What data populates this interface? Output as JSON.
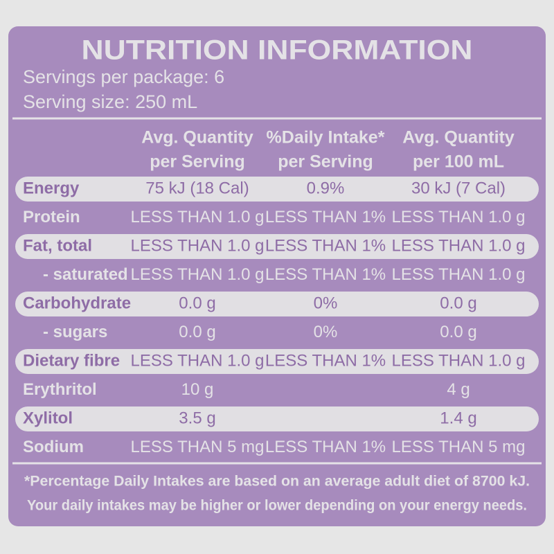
{
  "title": "NUTRITION INFORMATION",
  "servings": "Servings per package: 6",
  "serving_size": "Serving size: 250 mL",
  "table": {
    "headers": [
      [
        "Avg. Quantity",
        "per Serving"
      ],
      [
        "%Daily Intake*",
        "per Serving"
      ],
      [
        "Avg. Quantity",
        "per 100 mL"
      ]
    ],
    "rows": [
      {
        "label": "Energy",
        "cells": [
          "75 kJ (18 Cal)",
          "0.9%",
          "30 kJ (7 Cal)"
        ]
      },
      {
        "label": "Protein",
        "cells": [
          "LESS THAN 1.0 g",
          "LESS THAN 1%",
          "LESS THAN 1.0 g"
        ]
      },
      {
        "label": "Fat, total",
        "cells": [
          "LESS THAN 1.0 g",
          "LESS THAN 1%",
          "LESS THAN 1.0 g"
        ]
      },
      {
        "label": "- saturated",
        "cells": [
          "LESS THAN 1.0 g",
          "LESS THAN 1%",
          "LESS THAN 1.0 g"
        ]
      },
      {
        "label": "Carbohydrate",
        "cells": [
          "0.0 g",
          "0%",
          "0.0 g"
        ]
      },
      {
        "label": "- sugars",
        "cells": [
          "0.0 g",
          "0%",
          "0.0 g"
        ]
      },
      {
        "label": "Dietary fibre",
        "cells": [
          "LESS THAN 1.0 g",
          "LESS THAN 1%",
          "LESS THAN 1.0 g"
        ]
      },
      {
        "label": "Erythritol",
        "cells": [
          "10 g",
          null,
          "4 g"
        ]
      },
      {
        "label": "Xylitol",
        "cells": [
          "3.5 g",
          null,
          "1.4 g"
        ]
      },
      {
        "label": "Sodium",
        "cells": [
          "LESS THAN 5 mg",
          "LESS THAN 1%",
          "LESS THAN 5 mg"
        ]
      }
    ]
  },
  "footnote": [
    "*Percentage Daily Intakes are based on an average adult diet of 8700 kJ.",
    "Your daily intakes may be higher or lower depending on your energy needs."
  ]
}
